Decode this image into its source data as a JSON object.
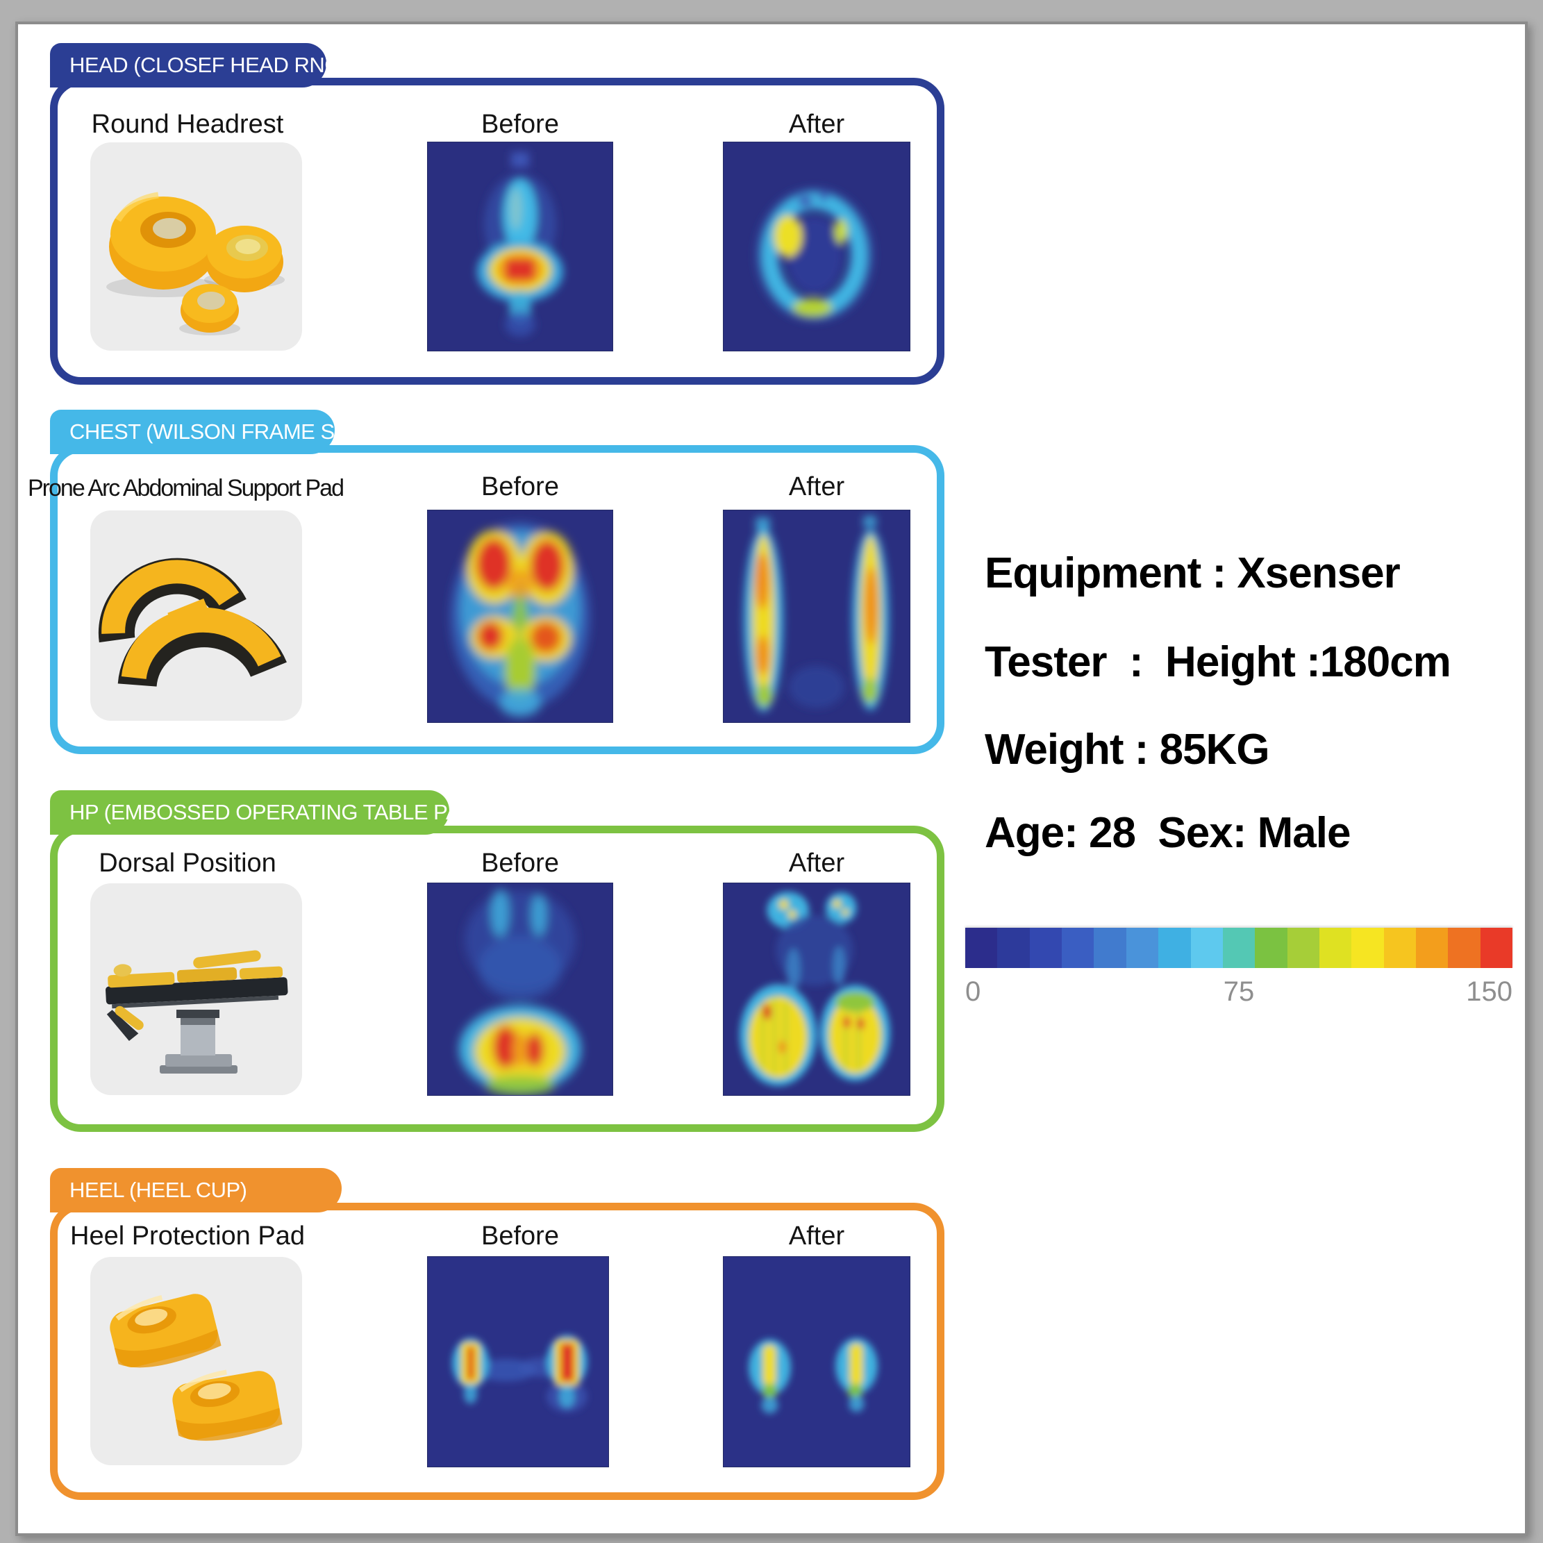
{
  "panels": [
    {
      "title": "HEAD (CLOSEF HEAD RNG)",
      "accent": "#2b3e94",
      "product_label": "Round Headrest",
      "before_label": "Before",
      "after_label": "After"
    },
    {
      "title": "CHEST (WILSON FRAME SET)",
      "accent": "#45b8e8",
      "product_label": "Prone Arc Abdominal Support Pad",
      "before_label": "Before",
      "after_label": "After"
    },
    {
      "title": "HP  (EMBOSSED OPERATING TABLE PAD)",
      "accent": "#7dc242",
      "product_label": "Dorsal  Position",
      "before_label": "Before",
      "after_label": "After"
    },
    {
      "title": "HEEL (HEEL CUP)",
      "accent": "#f0922e",
      "product_label": "Heel Protection Pad",
      "before_label": "Before",
      "after_label": "After"
    }
  ],
  "tester_info": {
    "equipment": "Equipment : Xsenser",
    "tester": "Tester  :  Height :180cm",
    "weight": "Weight : 85KG",
    "age_sex": "Age: 28  Sex: Male"
  },
  "colorbar": {
    "ticks": [
      "0",
      "75",
      "150"
    ],
    "colors": [
      "#2c2d8c",
      "#2d3a9b",
      "#3348b0",
      "#3a5ec2",
      "#417bce",
      "#4a93da",
      "#3fb0e3",
      "#5ec9ee",
      "#54c8b4",
      "#7bc241",
      "#a6ce38",
      "#dfe122",
      "#f6e522",
      "#f6c51f",
      "#f39e1c",
      "#ee7222",
      "#e93a28"
    ]
  }
}
